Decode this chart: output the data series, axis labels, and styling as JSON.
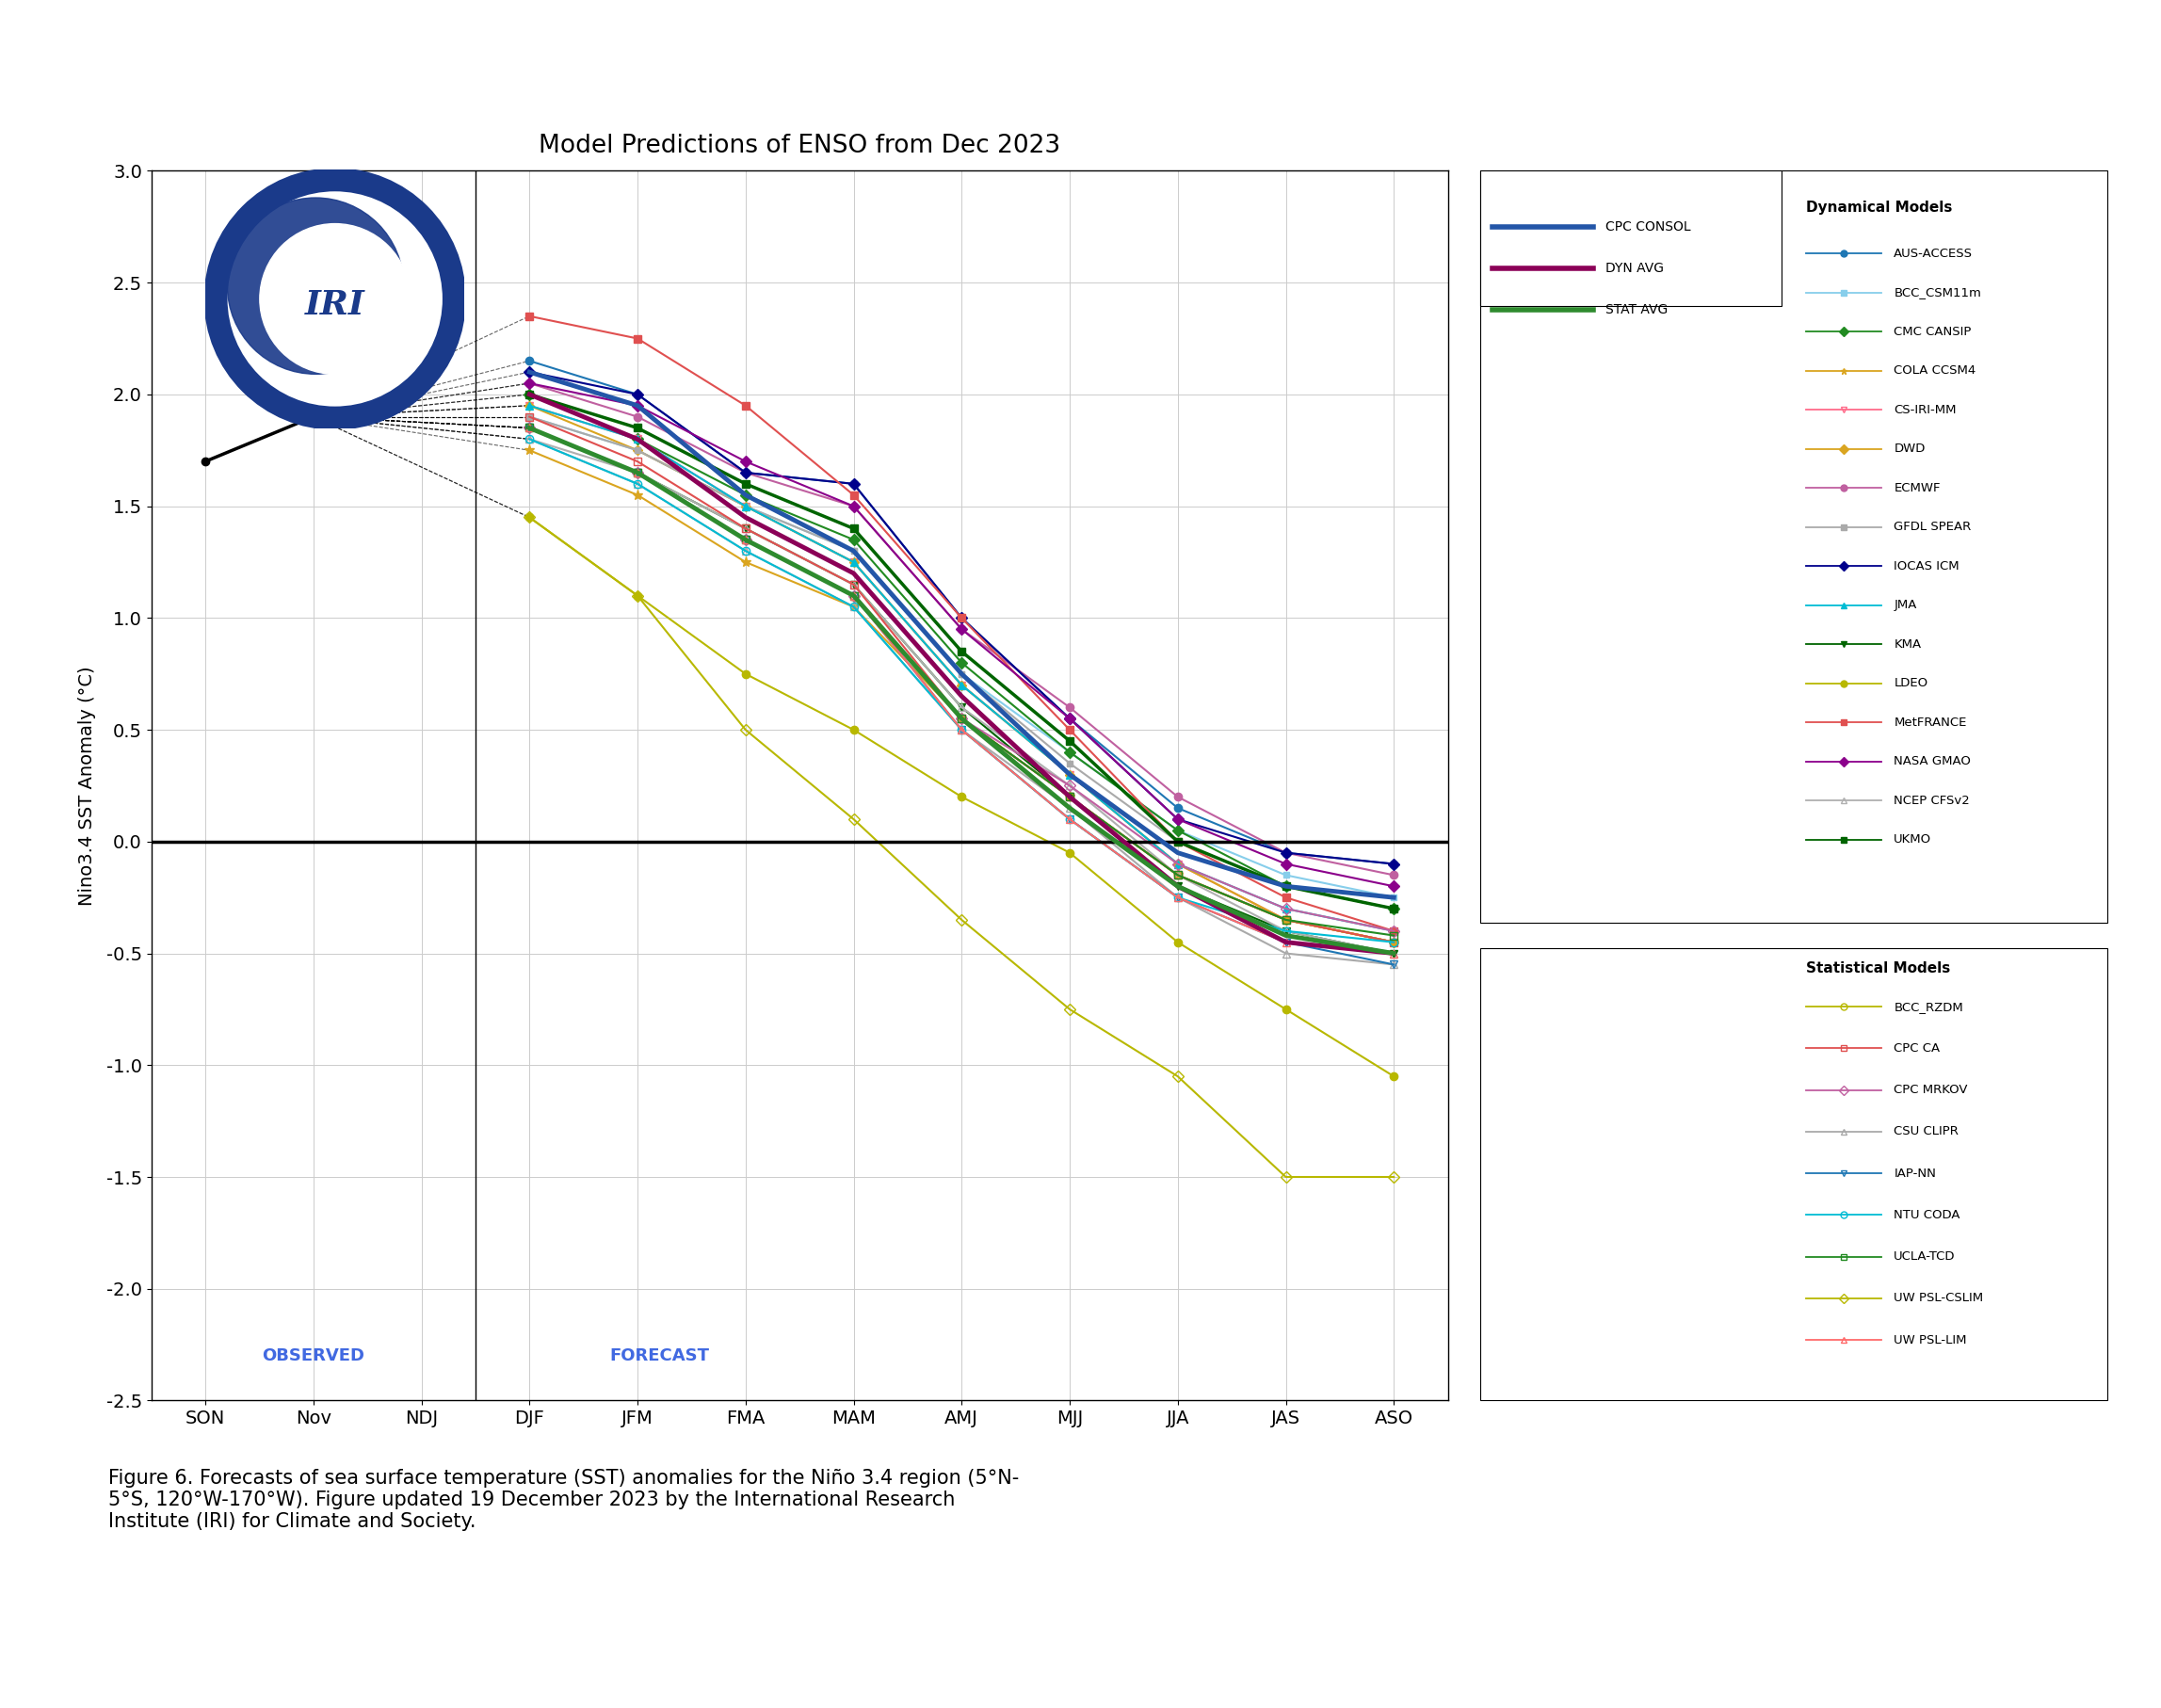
{
  "title": "Model Predictions of ENSO from Dec 2023",
  "ylabel": "Nino3.4 SST Anomaly (°C)",
  "xlabels": [
    "SON",
    "Nov",
    "NDJ",
    "DJF",
    "JFM",
    "FMA",
    "MAM",
    "AMJ",
    "MJJ",
    "JJA",
    "JAS",
    "ASO"
  ],
  "ylim": [
    -2.5,
    3.0
  ],
  "yticks": [
    -2.5,
    -2.0,
    -1.5,
    -1.0,
    -0.5,
    0.0,
    0.5,
    1.0,
    1.5,
    2.0,
    2.5,
    3.0
  ],
  "observed_label": "OBSERVED",
  "forecast_label": "FORECAST",
  "figure_caption": "Figure 6. Forecasts of sea surface temperature (SST) anomalies for the Niño 3.4 region (5°N-\n5°S, 120°W-170°W). Figure updated 19 December 2023 by the International Research\nInstitute (IRI) for Climate and Society.",
  "observed_data": {
    "x": [
      0,
      1
    ],
    "y": [
      1.7,
      1.9
    ],
    "color": "#000000",
    "linewidth": 2.5,
    "marker": "o",
    "markersize": 6
  },
  "highlight_lines": [
    {
      "name": "CPC CONSOL",
      "x": [
        1,
        3,
        4,
        5,
        6,
        7,
        8,
        9,
        10,
        11
      ],
      "y": [
        1.9,
        2.1,
        1.95,
        1.55,
        1.3,
        0.75,
        0.3,
        -0.05,
        -0.2,
        -0.25
      ],
      "color": "#2356a8",
      "linewidth": 3.5,
      "linestyle": "-",
      "zorder": 10
    },
    {
      "name": "DYN AVG",
      "x": [
        1,
        3,
        4,
        5,
        6,
        7,
        8,
        9,
        10,
        11
      ],
      "y": [
        1.9,
        2.0,
        1.8,
        1.45,
        1.2,
        0.65,
        0.2,
        -0.2,
        -0.45,
        -0.5
      ],
      "color": "#8B0057",
      "linewidth": 3.5,
      "linestyle": "-",
      "zorder": 10
    },
    {
      "name": "STAT AVG",
      "x": [
        1,
        3,
        4,
        5,
        6,
        7,
        8,
        9,
        10,
        11
      ],
      "y": [
        1.9,
        1.85,
        1.65,
        1.35,
        1.1,
        0.55,
        0.15,
        -0.2,
        -0.42,
        -0.5
      ],
      "color": "#2e8b2e",
      "linewidth": 3.5,
      "linestyle": "-",
      "zorder": 10
    }
  ],
  "dynamical_models": [
    {
      "name": "AUS-ACCESS",
      "x": [
        1,
        3,
        4,
        5,
        6,
        7,
        8,
        9,
        10,
        11
      ],
      "y": [
        1.9,
        2.15,
        2.0,
        1.65,
        1.6,
        1.0,
        0.55,
        0.15,
        -0.05,
        -0.1
      ],
      "color": "#1f77b4",
      "linewidth": 1.5,
      "marker": "o",
      "markersize": 6,
      "linestyle": "-",
      "fillstyle": "full"
    },
    {
      "name": "BCC_CSM11m",
      "x": [
        1,
        3,
        4,
        5,
        6,
        7,
        8,
        9,
        10,
        11
      ],
      "y": [
        1.9,
        1.9,
        1.75,
        1.5,
        1.3,
        0.75,
        0.4,
        0.05,
        -0.15,
        -0.25
      ],
      "color": "#87ceeb",
      "linewidth": 1.5,
      "marker": "s",
      "markersize": 5,
      "linestyle": "-",
      "fillstyle": "full"
    },
    {
      "name": "CMC CANSIP",
      "x": [
        1,
        3,
        4,
        5,
        6,
        7,
        8,
        9,
        10,
        11
      ],
      "y": [
        1.9,
        2.0,
        1.8,
        1.55,
        1.35,
        0.8,
        0.4,
        0.05,
        -0.2,
        -0.3
      ],
      "color": "#228B22",
      "linewidth": 1.5,
      "marker": "D",
      "markersize": 6,
      "linestyle": "-",
      "fillstyle": "full"
    },
    {
      "name": "COLA CCSM4",
      "x": [
        1,
        3,
        4,
        5,
        6,
        7,
        8,
        9,
        10,
        11
      ],
      "y": [
        1.9,
        1.75,
        1.55,
        1.25,
        1.05,
        0.55,
        0.2,
        -0.15,
        -0.35,
        -0.45
      ],
      "color": "#DAA520",
      "linewidth": 1.5,
      "marker": "*",
      "markersize": 8,
      "linestyle": "-",
      "fillstyle": "full"
    },
    {
      "name": "CS-IRI-MM",
      "x": [
        1,
        3,
        4,
        5,
        6,
        7,
        8,
        9,
        10,
        11
      ],
      "y": [
        1.9,
        1.95,
        1.8,
        1.5,
        1.25,
        0.7,
        0.3,
        -0.1,
        -0.35,
        -0.45
      ],
      "color": "#FF6B8A",
      "linewidth": 1.5,
      "marker": "v",
      "markersize": 6,
      "linestyle": "-",
      "fillstyle": "none"
    },
    {
      "name": "DWD",
      "x": [
        1,
        3,
        4,
        5,
        6,
        7,
        8,
        9,
        10,
        11
      ],
      "y": [
        1.9,
        1.95,
        1.75,
        1.5,
        1.25,
        0.7,
        0.3,
        -0.1,
        -0.35,
        -0.45
      ],
      "color": "#DAA520",
      "linewidth": 1.5,
      "marker": "D",
      "markersize": 5,
      "linestyle": "-",
      "fillstyle": "full"
    },
    {
      "name": "ECMWF",
      "x": [
        1,
        3,
        4,
        5,
        6,
        7,
        8,
        9,
        10,
        11
      ],
      "y": [
        1.9,
        2.05,
        1.9,
        1.65,
        1.5,
        0.95,
        0.6,
        0.2,
        -0.05,
        -0.15
      ],
      "color": "#c060a0",
      "linewidth": 1.5,
      "marker": "o",
      "markersize": 6,
      "linestyle": "-",
      "fillstyle": "full"
    },
    {
      "name": "GFDL SPEAR",
      "x": [
        1,
        3,
        4,
        5,
        6,
        7,
        8,
        9,
        10,
        11
      ],
      "y": [
        1.9,
        1.9,
        1.75,
        1.5,
        1.3,
        0.75,
        0.35,
        0.0,
        -0.2,
        -0.3
      ],
      "color": "#aaaaaa",
      "linewidth": 1.5,
      "marker": "s",
      "markersize": 5,
      "linestyle": "-",
      "fillstyle": "full"
    },
    {
      "name": "IOCAS ICM",
      "x": [
        1,
        3,
        4,
        5,
        6,
        7,
        8,
        9,
        10,
        11
      ],
      "y": [
        1.9,
        2.1,
        2.0,
        1.65,
        1.6,
        1.0,
        0.55,
        0.1,
        -0.05,
        -0.1
      ],
      "color": "#00008B",
      "linewidth": 1.5,
      "marker": "D",
      "markersize": 6,
      "linestyle": "-",
      "fillstyle": "full"
    },
    {
      "name": "JMA",
      "x": [
        1,
        3,
        4,
        5,
        6,
        7,
        8,
        9,
        10,
        11
      ],
      "y": [
        1.9,
        1.95,
        1.8,
        1.5,
        1.25,
        0.7,
        0.3,
        -0.1,
        -0.3,
        -0.4
      ],
      "color": "#00bcd4",
      "linewidth": 1.5,
      "marker": "^",
      "markersize": 6,
      "linestyle": "-",
      "fillstyle": "full"
    },
    {
      "name": "KMA",
      "x": [
        1,
        3,
        4,
        5,
        6,
        7,
        8,
        9,
        10,
        11
      ],
      "y": [
        1.9,
        1.85,
        1.65,
        1.4,
        1.15,
        0.6,
        0.2,
        -0.2,
        -0.4,
        -0.5
      ],
      "color": "#006400",
      "linewidth": 1.5,
      "marker": "v",
      "markersize": 6,
      "linestyle": "-",
      "fillstyle": "full"
    },
    {
      "name": "LDEO",
      "x": [
        1,
        3,
        4,
        5,
        6,
        7,
        8,
        9,
        10,
        11
      ],
      "y": [
        1.9,
        1.45,
        1.1,
        0.75,
        0.5,
        0.2,
        -0.05,
        -0.45,
        -0.75,
        -1.05
      ],
      "color": "#b8b800",
      "linewidth": 1.5,
      "marker": "o",
      "markersize": 6,
      "linestyle": "-",
      "fillstyle": "full"
    },
    {
      "name": "MetFRANCE",
      "x": [
        1,
        3,
        4,
        5,
        6,
        7,
        8,
        9,
        10,
        11
      ],
      "y": [
        1.9,
        2.35,
        2.25,
        1.95,
        1.55,
        1.0,
        0.5,
        0.0,
        -0.25,
        -0.4
      ],
      "color": "#e05050",
      "linewidth": 1.5,
      "marker": "s",
      "markersize": 6,
      "linestyle": "-",
      "fillstyle": "full"
    },
    {
      "name": "NASA GMAO",
      "x": [
        1,
        3,
        4,
        5,
        6,
        7,
        8,
        9,
        10,
        11
      ],
      "y": [
        1.9,
        2.05,
        1.95,
        1.7,
        1.5,
        0.95,
        0.55,
        0.1,
        -0.1,
        -0.2
      ],
      "color": "#8B008B",
      "linewidth": 1.5,
      "marker": "D",
      "markersize": 6,
      "linestyle": "-",
      "fillstyle": "full"
    },
    {
      "name": "NCEP CFSv2",
      "x": [
        1,
        3,
        4,
        5,
        6,
        7,
        8,
        9,
        10,
        11
      ],
      "y": [
        1.9,
        1.8,
        1.65,
        1.4,
        1.15,
        0.6,
        0.25,
        -0.15,
        -0.4,
        -0.5
      ],
      "color": "#b0b0b0",
      "linewidth": 1.5,
      "marker": "^",
      "markersize": 6,
      "linestyle": "-",
      "fillstyle": "none"
    },
    {
      "name": "UKMO",
      "x": [
        1,
        3,
        4,
        5,
        6,
        7,
        8,
        9,
        10,
        11
      ],
      "y": [
        1.9,
        2.0,
        1.85,
        1.6,
        1.4,
        0.85,
        0.45,
        0.0,
        -0.2,
        -0.3
      ],
      "color": "#006400",
      "linewidth": 2.5,
      "marker": "s",
      "markersize": 6,
      "linestyle": "-",
      "fillstyle": "full"
    }
  ],
  "statistical_models": [
    {
      "name": "BCC_RZDM",
      "x": [
        1,
        3,
        4,
        5,
        6,
        7,
        8,
        9,
        10,
        11
      ],
      "y": [
        1.9,
        1.85,
        1.65,
        1.35,
        1.1,
        0.55,
        0.2,
        -0.15,
        -0.35,
        -0.45
      ],
      "color": "#b8b800",
      "linewidth": 1.5,
      "marker": "o",
      "markersize": 6,
      "linestyle": "-",
      "fillstyle": "none"
    },
    {
      "name": "CPC CA",
      "x": [
        1,
        3,
        4,
        5,
        6,
        7,
        8,
        9,
        10,
        11
      ],
      "y": [
        1.9,
        1.9,
        1.7,
        1.4,
        1.15,
        0.55,
        0.2,
        -0.15,
        -0.35,
        -0.45
      ],
      "color": "#e05050",
      "linewidth": 1.5,
      "marker": "s",
      "markersize": 6,
      "linestyle": "-",
      "fillstyle": "none"
    },
    {
      "name": "CPC MRKOV",
      "x": [
        1,
        3,
        4,
        5,
        6,
        7,
        8,
        9,
        10,
        11
      ],
      "y": [
        1.9,
        1.85,
        1.65,
        1.35,
        1.1,
        0.55,
        0.25,
        -0.1,
        -0.3,
        -0.4
      ],
      "color": "#c060a0",
      "linewidth": 1.5,
      "marker": "D",
      "markersize": 6,
      "linestyle": "-",
      "fillstyle": "none"
    },
    {
      "name": "CSU CLIPR",
      "x": [
        1,
        3,
        4,
        5,
        6,
        7,
        8,
        9,
        10,
        11
      ],
      "y": [
        1.9,
        1.8,
        1.6,
        1.3,
        1.05,
        0.5,
        0.15,
        -0.25,
        -0.5,
        -0.55
      ],
      "color": "#aaaaaa",
      "linewidth": 1.5,
      "marker": "^",
      "markersize": 6,
      "linestyle": "-",
      "fillstyle": "none"
    },
    {
      "name": "IAP-NN",
      "x": [
        1,
        3,
        4,
        5,
        6,
        7,
        8,
        9,
        10,
        11
      ],
      "y": [
        1.9,
        1.85,
        1.65,
        1.35,
        1.1,
        0.5,
        0.1,
        -0.25,
        -0.45,
        -0.55
      ],
      "color": "#1f77b4",
      "linewidth": 1.5,
      "marker": "v",
      "markersize": 6,
      "linestyle": "-",
      "fillstyle": "none"
    },
    {
      "name": "NTU CODA",
      "x": [
        1,
        3,
        4,
        5,
        6,
        7,
        8,
        9,
        10,
        11
      ],
      "y": [
        1.9,
        1.8,
        1.6,
        1.3,
        1.05,
        0.5,
        0.1,
        -0.25,
        -0.4,
        -0.45
      ],
      "color": "#00bcd4",
      "linewidth": 1.5,
      "marker": "o",
      "markersize": 6,
      "linestyle": "-",
      "fillstyle": "none"
    },
    {
      "name": "UCLA-TCD",
      "x": [
        1,
        3,
        4,
        5,
        6,
        7,
        8,
        9,
        10,
        11
      ],
      "y": [
        1.9,
        1.85,
        1.65,
        1.35,
        1.1,
        0.55,
        0.2,
        -0.15,
        -0.35,
        -0.42
      ],
      "color": "#228B22",
      "linewidth": 1.5,
      "marker": "s",
      "markersize": 6,
      "linestyle": "-",
      "fillstyle": "none"
    },
    {
      "name": "UW PSL-CSLIM",
      "x": [
        1,
        3,
        4,
        5,
        6,
        7,
        8,
        9,
        10,
        11
      ],
      "y": [
        1.9,
        1.45,
        1.1,
        0.5,
        0.1,
        -0.35,
        -0.75,
        -1.05,
        -1.5,
        -1.5
      ],
      "color": "#b8b800",
      "linewidth": 1.5,
      "marker": "D",
      "markersize": 6,
      "linestyle": "-",
      "fillstyle": "none"
    },
    {
      "name": "UW PSL-LIM",
      "x": [
        1,
        3,
        4,
        5,
        6,
        7,
        8,
        9,
        10,
        11
      ],
      "y": [
        1.9,
        1.85,
        1.65,
        1.35,
        1.1,
        0.5,
        0.1,
        -0.25,
        -0.45,
        -0.5
      ],
      "color": "#FF6B6B",
      "linewidth": 1.5,
      "marker": "^",
      "markersize": 6,
      "linestyle": "-",
      "fillstyle": "none"
    }
  ],
  "background_color": "#ffffff",
  "grid_color": "#cccccc"
}
